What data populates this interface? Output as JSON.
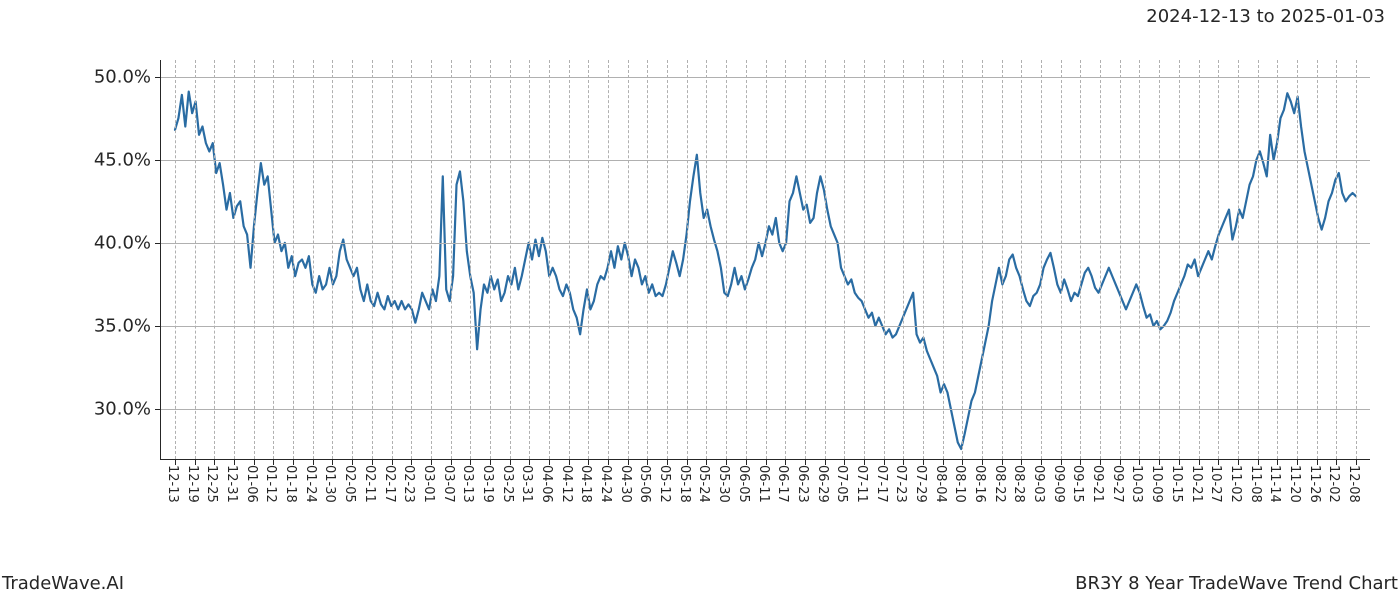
{
  "header": {
    "date_range": "2024-12-13 to 2025-01-03"
  },
  "footer": {
    "left": "TradeWave.AI",
    "right": "BR3Y 8 Year TradeWave Trend Chart"
  },
  "chart": {
    "type": "line",
    "background_color": "#ffffff",
    "axis_color": "#262626",
    "grid_color": "#b0b0b0",
    "grid_dash": "4 3",
    "line_color": "#2a6ca3",
    "line_width": 2.2,
    "highlight_band": {
      "color": "#d8ead3",
      "opacity": 0.65,
      "x_start": "12-13",
      "x_end": "01-03"
    },
    "ylim": [
      27,
      51
    ],
    "y_ticks": [
      30,
      35,
      40,
      45,
      50
    ],
    "y_tick_labels": [
      "30.0%",
      "35.0%",
      "40.0%",
      "45.0%",
      "50.0%"
    ],
    "tick_fontsize_y": 18,
    "tick_fontsize_x": 13,
    "x_labels": [
      "12-13",
      "12-19",
      "12-25",
      "12-31",
      "01-06",
      "01-12",
      "01-18",
      "01-24",
      "01-30",
      "02-05",
      "02-11",
      "02-17",
      "02-23",
      "03-01",
      "03-07",
      "03-13",
      "03-19",
      "03-25",
      "03-31",
      "04-06",
      "04-12",
      "04-18",
      "04-24",
      "04-30",
      "05-06",
      "05-12",
      "05-18",
      "05-24",
      "05-30",
      "06-05",
      "06-11",
      "06-17",
      "06-23",
      "06-29",
      "07-05",
      "07-11",
      "07-17",
      "07-23",
      "07-29",
      "08-04",
      "08-10",
      "08-16",
      "08-22",
      "08-28",
      "09-03",
      "09-09",
      "09-15",
      "09-21",
      "09-27",
      "10-03",
      "10-09",
      "10-15",
      "10-21",
      "10-27",
      "11-02",
      "11-08",
      "11-14",
      "11-20",
      "11-26",
      "12-02",
      "12-08"
    ],
    "series": [
      46.8,
      47.5,
      48.9,
      47.0,
      49.1,
      47.8,
      48.5,
      46.5,
      47.0,
      46.0,
      45.5,
      46.0,
      44.2,
      44.8,
      43.5,
      42.0,
      43.0,
      41.5,
      42.2,
      42.5,
      41.0,
      40.5,
      38.5,
      41.0,
      43.0,
      44.8,
      43.5,
      44.0,
      42.0,
      40.0,
      40.5,
      39.5,
      40.0,
      38.5,
      39.2,
      38.0,
      38.8,
      39.0,
      38.5,
      39.2,
      37.5,
      37.0,
      38.0,
      37.2,
      37.5,
      38.5,
      37.5,
      38.0,
      39.5,
      40.2,
      39.0,
      38.5,
      38.0,
      38.5,
      37.2,
      36.5,
      37.5,
      36.5,
      36.2,
      37.0,
      36.3,
      36.0,
      36.8,
      36.2,
      36.5,
      36.0,
      36.5,
      36.0,
      36.3,
      36.0,
      35.2,
      36.0,
      37.0,
      36.5,
      36.0,
      37.2,
      36.5,
      38.0,
      44.0,
      37.2,
      36.5,
      38.0,
      43.5,
      44.3,
      42.5,
      39.5,
      38.0,
      37.0,
      33.6,
      36.0,
      37.5,
      37.0,
      38.0,
      37.2,
      37.8,
      36.5,
      37.0,
      38.0,
      37.5,
      38.5,
      37.2,
      38.0,
      39.0,
      40.0,
      39.0,
      40.2,
      39.2,
      40.3,
      39.5,
      38.0,
      38.5,
      38.0,
      37.2,
      36.8,
      37.5,
      37.0,
      36.0,
      35.5,
      34.5,
      36.0,
      37.2,
      36.0,
      36.5,
      37.5,
      38.0,
      37.8,
      38.5,
      39.5,
      38.5,
      39.8,
      39.0,
      40.0,
      39.2,
      38.0,
      39.0,
      38.5,
      37.5,
      38.0,
      37.0,
      37.5,
      36.8,
      37.0,
      36.8,
      37.5,
      38.5,
      39.5,
      38.8,
      38.0,
      39.0,
      40.5,
      42.5,
      44.0,
      45.3,
      43.0,
      41.5,
      42.0,
      41.0,
      40.2,
      39.5,
      38.5,
      37.0,
      36.8,
      37.5,
      38.5,
      37.5,
      38.0,
      37.2,
      37.8,
      38.5,
      39.0,
      40.0,
      39.2,
      40.0,
      41.0,
      40.5,
      41.5,
      40.0,
      39.5,
      40.0,
      42.5,
      43.0,
      44.0,
      43.0,
      42.0,
      42.3,
      41.2,
      41.5,
      43.0,
      44.0,
      43.2,
      42.0,
      41.0,
      40.5,
      40.0,
      38.5,
      38.0,
      37.5,
      37.8,
      37.0,
      36.7,
      36.5,
      36.0,
      35.5,
      35.8,
      35.0,
      35.5,
      35.0,
      34.5,
      34.8,
      34.3,
      34.5,
      35.0,
      35.5,
      36.0,
      36.5,
      37.0,
      34.5,
      34.0,
      34.3,
      33.5,
      33.0,
      32.5,
      32.0,
      31.0,
      31.5,
      31.0,
      30.0,
      29.0,
      28.0,
      27.6,
      28.5,
      29.5,
      30.5,
      31.0,
      32.0,
      33.0,
      34.0,
      35.0,
      36.5,
      37.5,
      38.5,
      37.5,
      38.0,
      39.0,
      39.3,
      38.5,
      38.0,
      37.2,
      36.5,
      36.2,
      36.8,
      37.0,
      37.5,
      38.5,
      39.0,
      39.4,
      38.5,
      37.5,
      37.0,
      37.8,
      37.2,
      36.5,
      37.0,
      36.8,
      37.5,
      38.2,
      38.5,
      38.0,
      37.3,
      37.0,
      37.5,
      38.0,
      38.5,
      38.0,
      37.5,
      37.0,
      36.5,
      36.0,
      36.5,
      37.0,
      37.5,
      37.0,
      36.2,
      35.5,
      35.7,
      35.0,
      35.3,
      34.8,
      35.0,
      35.3,
      35.8,
      36.5,
      37.0,
      37.5,
      38.0,
      38.7,
      38.5,
      39.0,
      38.0,
      38.5,
      39.0,
      39.5,
      39.0,
      39.8,
      40.5,
      41.0,
      41.5,
      42.0,
      40.2,
      41.0,
      42.0,
      41.5,
      42.5,
      43.5,
      44.0,
      45.0,
      45.5,
      44.8,
      44.0,
      46.5,
      45.0,
      46.0,
      47.5,
      48.0,
      49.0,
      48.5,
      47.8,
      48.8,
      47.0,
      45.5,
      44.5,
      43.5,
      42.5,
      41.5,
      40.8,
      41.5,
      42.5,
      43.0,
      43.8,
      44.2,
      43.0,
      42.5,
      42.8,
      43.0,
      42.8
    ]
  }
}
